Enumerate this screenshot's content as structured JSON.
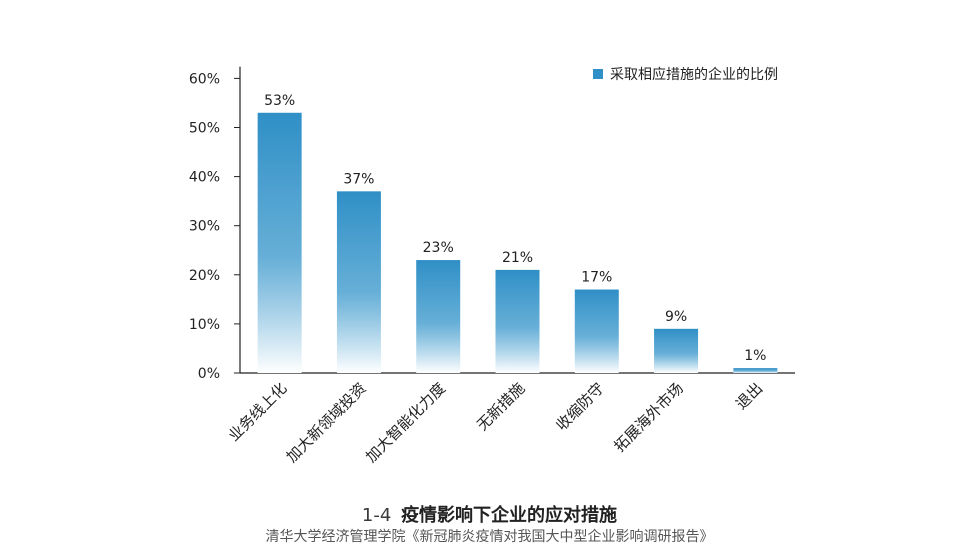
{
  "chart_data": {
    "type": "bar",
    "categories": [
      "业务线上化",
      "加大新领域投资",
      "加大智能化力度",
      "无新措施",
      "收缩防守",
      "拓展海外市场",
      "退出"
    ],
    "series": [
      {
        "name": "采取相应措施的企业的比例",
        "values": [
          53,
          37,
          23,
          21,
          17,
          9,
          1
        ]
      }
    ],
    "data_labels": [
      "53%",
      "37%",
      "23%",
      "21%",
      "17%",
      "9%",
      "1%"
    ],
    "yticks": [
      "0%",
      "10%",
      "20%",
      "30%",
      "40%",
      "50%",
      "60%"
    ],
    "ylim": [
      0,
      62
    ],
    "legend_position": "top-right",
    "grid": false,
    "bar_color": "#2f8fc6"
  },
  "caption": {
    "number": "1-4",
    "title": "疫情影响下企业的应对措施",
    "source": "清华大学经济管理学院《新冠肺炎疫情对我国大中型企业影响调研报告》"
  }
}
